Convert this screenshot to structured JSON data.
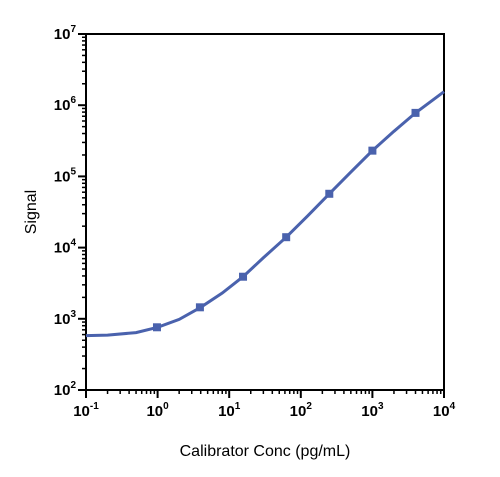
{
  "chart_data": {
    "type": "line",
    "xlabel": "Calibrator Conc (pg/mL)",
    "ylabel": "Signal",
    "x_scale": "log",
    "y_scale": "log",
    "xlim": [
      0.1,
      10000
    ],
    "ylim": [
      100,
      10000000
    ],
    "x_ticks": [
      {
        "base": "10",
        "exp": "-1"
      },
      {
        "base": "10",
        "exp": "0"
      },
      {
        "base": "10",
        "exp": "1"
      },
      {
        "base": "10",
        "exp": "2"
      },
      {
        "base": "10",
        "exp": "3"
      },
      {
        "base": "10",
        "exp": "4"
      }
    ],
    "y_ticks": [
      {
        "base": "10",
        "exp": "2"
      },
      {
        "base": "10",
        "exp": "3"
      },
      {
        "base": "10",
        "exp": "4"
      },
      {
        "base": "10",
        "exp": "5"
      },
      {
        "base": "10",
        "exp": "6"
      },
      {
        "base": "10",
        "exp": "7"
      }
    ],
    "grid": false,
    "series": [
      {
        "color": "#4a62ad",
        "points": [
          {
            "x": 0.98,
            "y": 760
          },
          {
            "x": 3.9,
            "y": 1450
          },
          {
            "x": 15.6,
            "y": 3900
          },
          {
            "x": 62.5,
            "y": 14000
          },
          {
            "x": 250,
            "y": 57000
          },
          {
            "x": 1000,
            "y": 230000
          },
          {
            "x": 4000,
            "y": 780000
          }
        ],
        "fit_curve": [
          {
            "x": 0.1,
            "y": 580
          },
          {
            "x": 0.2,
            "y": 590
          },
          {
            "x": 0.5,
            "y": 640
          },
          {
            "x": 1,
            "y": 760
          },
          {
            "x": 2,
            "y": 980
          },
          {
            "x": 4,
            "y": 1450
          },
          {
            "x": 8,
            "y": 2300
          },
          {
            "x": 15.6,
            "y": 3900
          },
          {
            "x": 30,
            "y": 7200
          },
          {
            "x": 62.5,
            "y": 14000
          },
          {
            "x": 125,
            "y": 28000
          },
          {
            "x": 250,
            "y": 57000
          },
          {
            "x": 500,
            "y": 115000
          },
          {
            "x": 1000,
            "y": 230000
          },
          {
            "x": 2000,
            "y": 430000
          },
          {
            "x": 4000,
            "y": 780000
          },
          {
            "x": 10000,
            "y": 1550000
          }
        ]
      }
    ]
  }
}
